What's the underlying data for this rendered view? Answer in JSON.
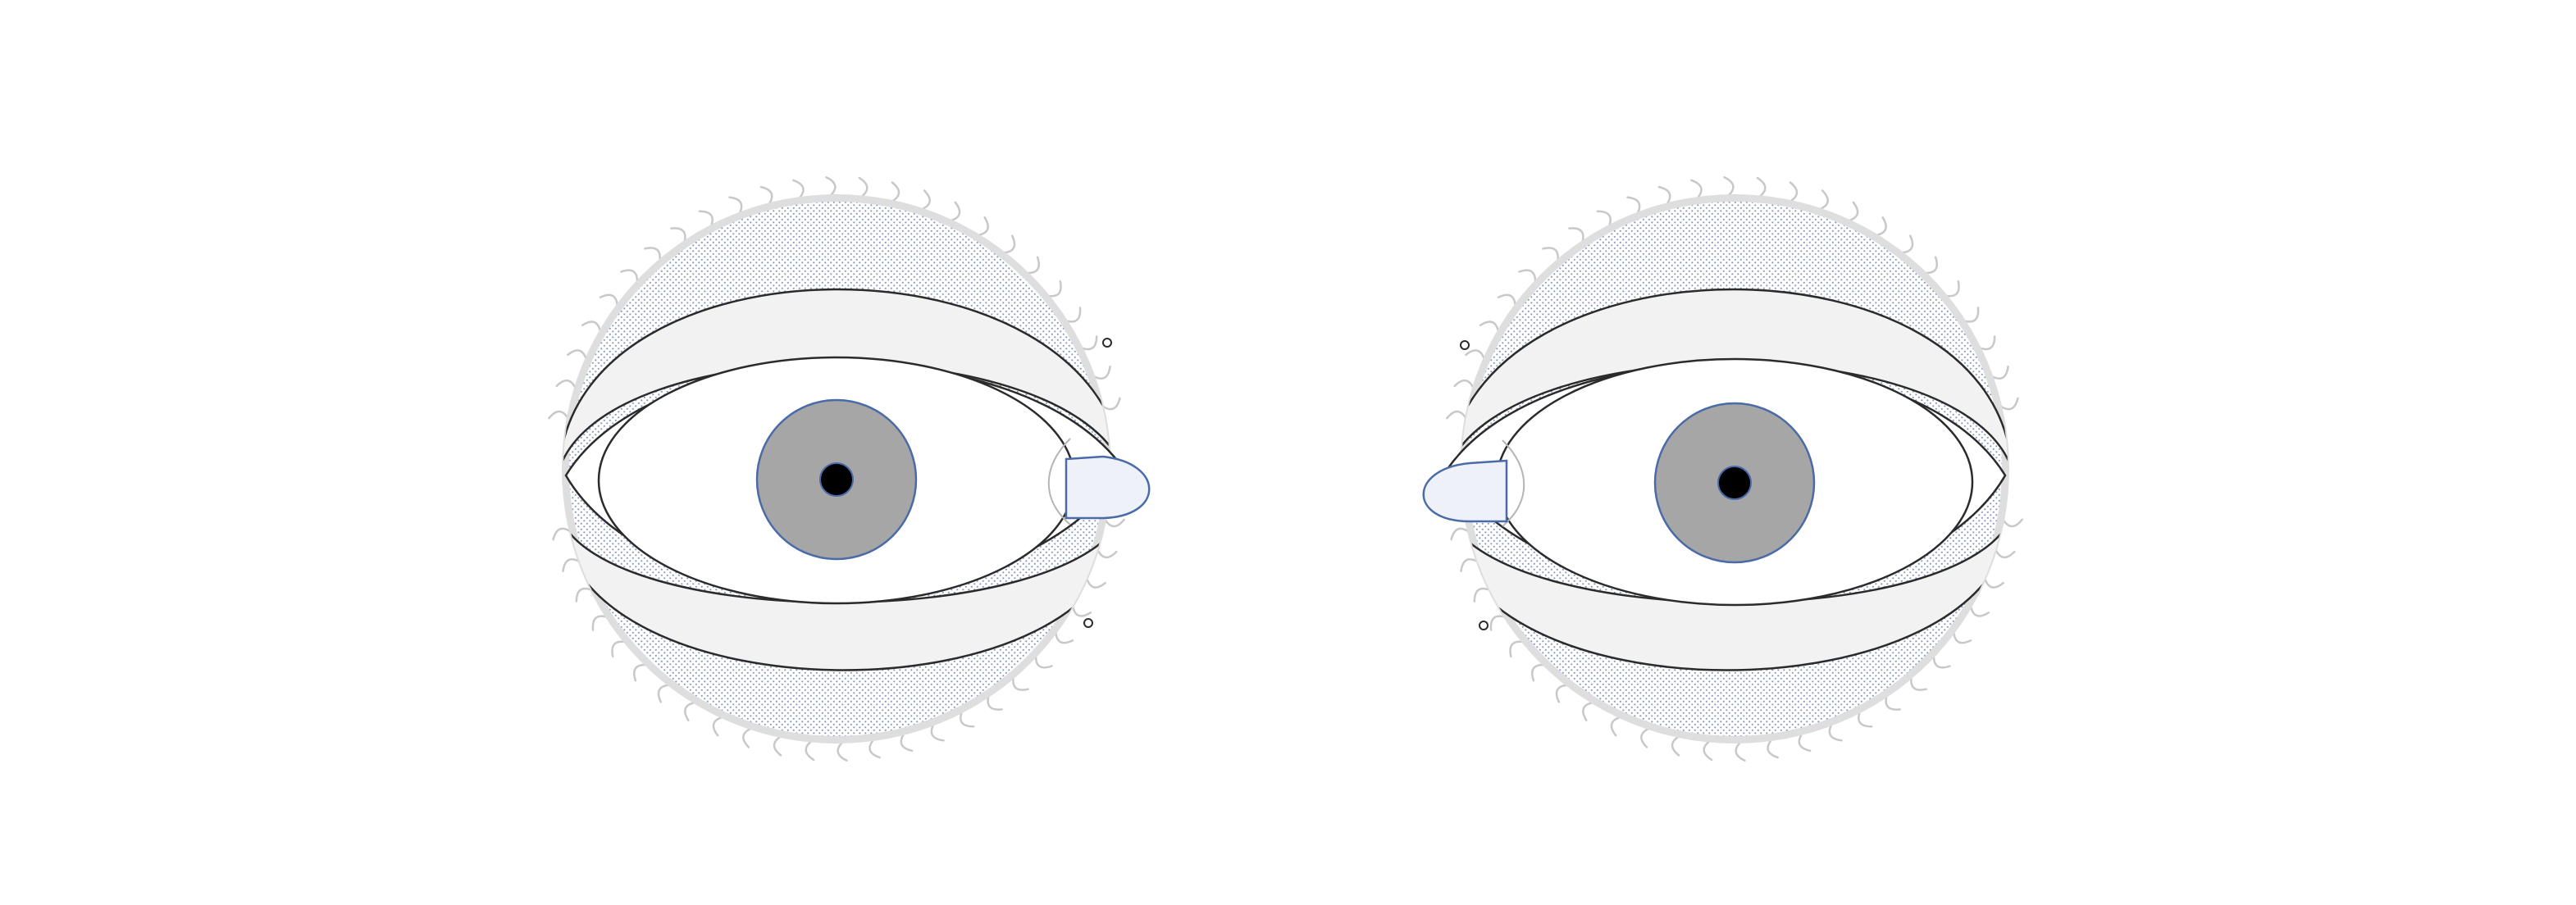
{
  "diagram": {
    "eyes": [
      {
        "side": "right-eye",
        "caruncle": "medial"
      },
      {
        "side": "left-eye",
        "caruncle": "medial"
      }
    ],
    "colors": {
      "background": "#ffffff",
      "outline": "#2b2b2b",
      "lid": "#f2f2f2",
      "halo": "#dedede",
      "dots": "#7d8fb3",
      "iris": "#a6a6a6",
      "iris_edge": "#4a6aa8",
      "pupil": "#000000",
      "caruncle_fill": "#eef1f7",
      "caruncle_edge": "#4a6aa8",
      "lash": "#c8c8c8"
    }
  }
}
